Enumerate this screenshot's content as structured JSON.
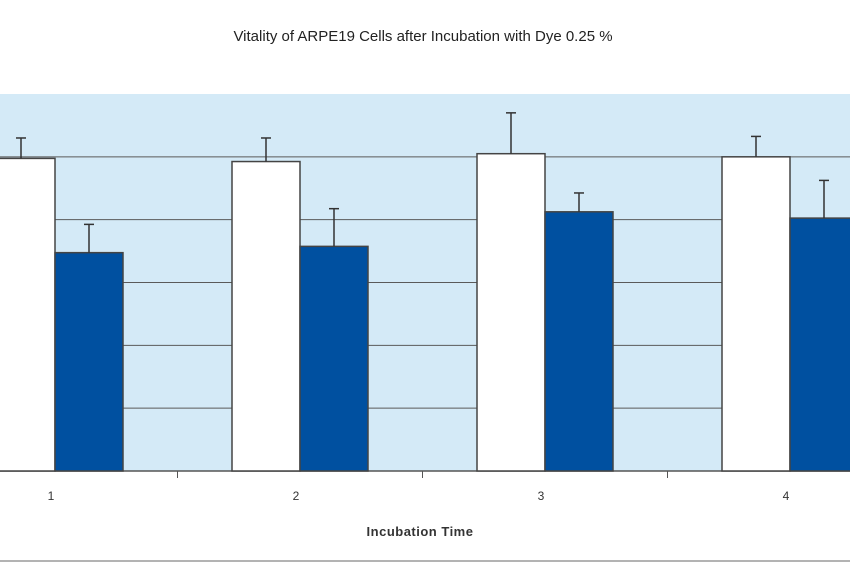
{
  "chart_data": {
    "type": "bar",
    "title": "Vitality of ARPE19 Cells after Incubation with Dye 0.25 %",
    "xlabel": "Incubation Time",
    "ylabel": "",
    "categories": [
      "1",
      "2",
      "3",
      "4"
    ],
    "series": [
      {
        "color": "#ffffff",
        "values": [
          99.5,
          98.5,
          101.0,
          100.0
        ],
        "errors": [
          6.5,
          7.5,
          13.0,
          6.5
        ]
      },
      {
        "color": "#0050a0",
        "values": [
          69.5,
          71.5,
          82.5,
          80.5
        ],
        "errors": [
          9.0,
          12.0,
          6.0,
          12.0
        ]
      }
    ],
    "ylim": [
      0,
      120
    ],
    "y_gridlines": [
      20,
      40,
      60,
      80,
      100
    ],
    "grid": true,
    "plot_background": "#d4eaf7"
  }
}
